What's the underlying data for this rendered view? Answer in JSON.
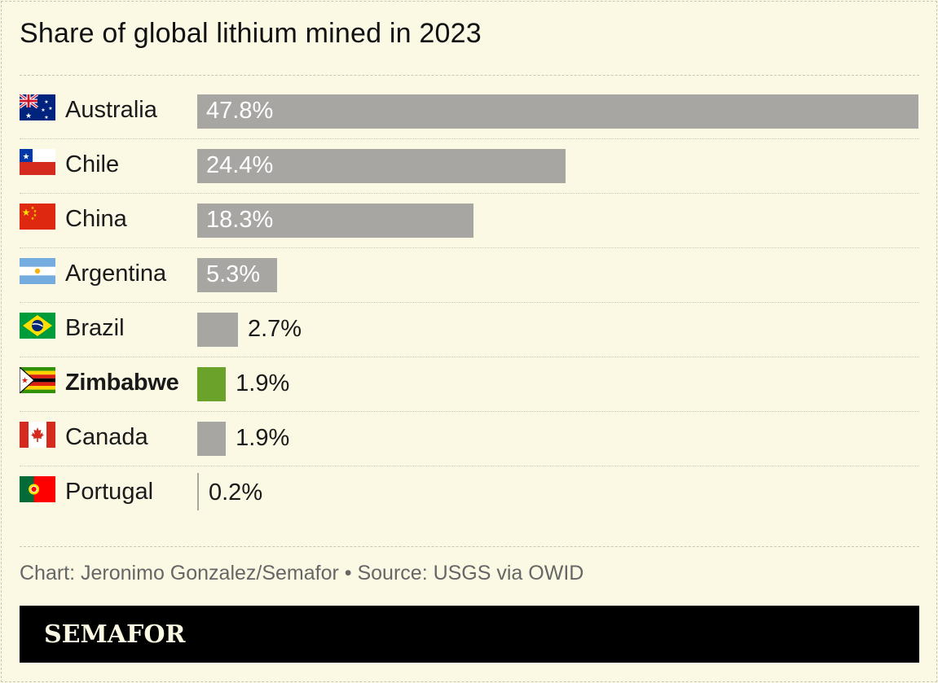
{
  "title": "Share of global lithium mined in 2023",
  "footer": "Chart: Jeronimo Gonzalez/Semafor • Source: USGS via OWID",
  "brand": "SEMAFOR",
  "colors": {
    "background": "#fbf8e4",
    "bar": "#a8a6a3",
    "highlight": "#6aa22a"
  },
  "chart_data": {
    "type": "bar",
    "orientation": "horizontal",
    "title": "Share of global lithium mined in 2023",
    "categories": [
      "Australia",
      "Chile",
      "China",
      "Argentina",
      "Brazil",
      "Zimbabwe",
      "Canada",
      "Portugal"
    ],
    "values": [
      47.8,
      24.4,
      18.3,
      5.3,
      2.7,
      1.9,
      1.9,
      0.2
    ],
    "value_labels": [
      "47.8%",
      "24.4%",
      "18.3%",
      "5.3%",
      "2.7%",
      "1.9%",
      "1.9%",
      "0.2%"
    ],
    "highlighted": "Zimbabwe",
    "flags": [
      "australia-flag-icon",
      "chile-flag-icon",
      "china-flag-icon",
      "argentina-flag-icon",
      "brazil-flag-icon",
      "zimbabwe-flag-icon",
      "canada-flag-icon",
      "portugal-flag-icon"
    ],
    "grid": false
  }
}
